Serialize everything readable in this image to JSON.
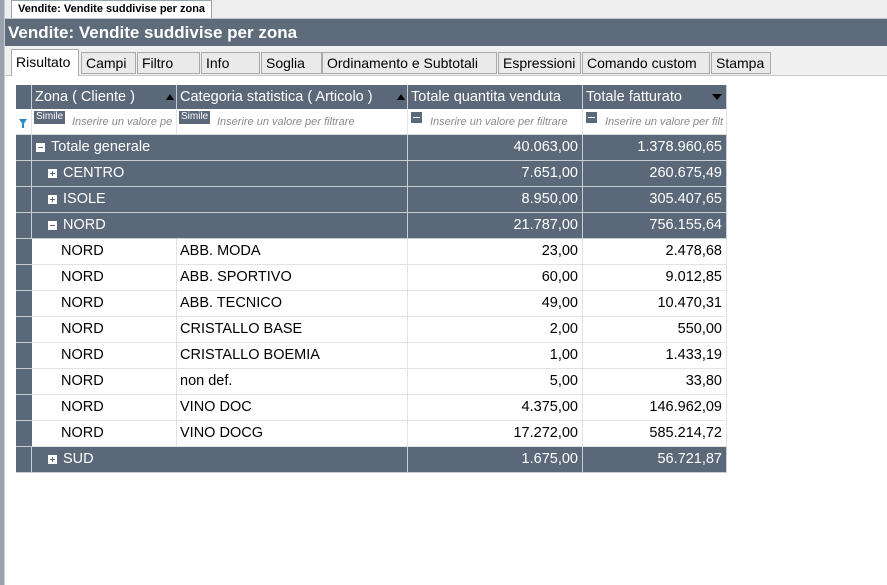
{
  "document_tab": "Vendite: Vendite suddivise per zona",
  "title": "Vendite: Vendite suddivise per zona",
  "tabs": [
    {
      "label": "Risultato",
      "active": true
    },
    {
      "label": "Campi"
    },
    {
      "label": "Filtro"
    },
    {
      "label": "Info"
    },
    {
      "label": "Soglia"
    },
    {
      "label": "Ordinamento e Subtotali"
    },
    {
      "label": "Espressioni"
    },
    {
      "label": "Comando custom"
    },
    {
      "label": "Stampa"
    }
  ],
  "grid": {
    "columns": [
      {
        "label": "Zona ( Cliente )",
        "sort": "asc"
      },
      {
        "label": "Categoria statistica ( Articolo )",
        "sort": "asc"
      },
      {
        "label": "Totale quantita venduta",
        "sort": "none"
      },
      {
        "label": "Totale fatturato",
        "sort": "desc"
      }
    ],
    "filter": {
      "operator_text": "Simile",
      "placeholder": "Inserire un valore per filtrare",
      "placeholder_short": "Inserire un valore pe",
      "placeholder_cut": "Inserire un valore per filt"
    },
    "total_row": {
      "label": "Totale generale",
      "qty": "40.063,00",
      "amount": "1.378.960,65"
    },
    "groups": [
      {
        "label": "CENTRO",
        "qty": "7.651,00",
        "amount": "260.675,49",
        "expanded": false
      },
      {
        "label": "ISOLE",
        "qty": "8.950,00",
        "amount": "305.407,65",
        "expanded": false
      },
      {
        "label": "NORD",
        "qty": "21.787,00",
        "amount": "756.155,64",
        "expanded": true
      }
    ],
    "rows": [
      {
        "zona": "NORD",
        "categoria": "ABB. MODA",
        "qty": "23,00",
        "amount": "2.478,68"
      },
      {
        "zona": "NORD",
        "categoria": "ABB. SPORTIVO",
        "qty": "60,00",
        "amount": "9.012,85"
      },
      {
        "zona": "NORD",
        "categoria": "ABB. TECNICO",
        "qty": "49,00",
        "amount": "10.470,31"
      },
      {
        "zona": "NORD",
        "categoria": "CRISTALLO BASE",
        "qty": "2,00",
        "amount": "550,00"
      },
      {
        "zona": "NORD",
        "categoria": "CRISTALLO BOEMIA",
        "qty": "1,00",
        "amount": "1.433,19"
      },
      {
        "zona": "NORD",
        "categoria": "non def.",
        "qty": "5,00",
        "amount": "33,80"
      },
      {
        "zona": "NORD",
        "categoria": "VINO DOC",
        "qty": "4.375,00",
        "amount": "146.962,09"
      },
      {
        "zona": "NORD",
        "categoria": "VINO DOCG",
        "qty": "17.272,00",
        "amount": "585.214,72"
      }
    ],
    "last_group": {
      "label": "SUD",
      "qty": "1.675,00",
      "amount": "56.721,87",
      "expanded": false
    }
  }
}
